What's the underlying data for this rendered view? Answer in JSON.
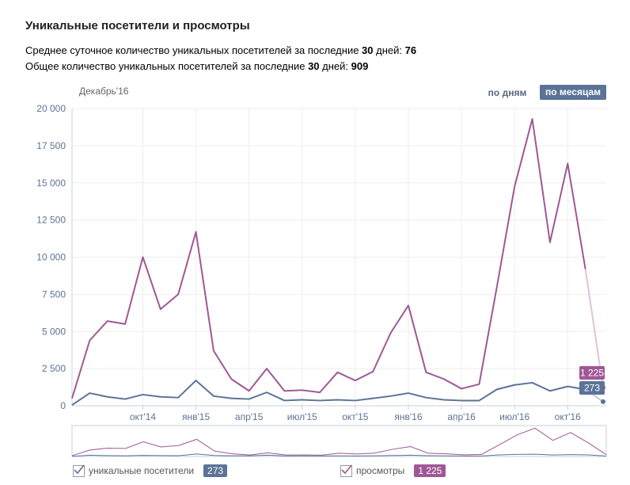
{
  "header": {
    "title": "Уникальные посетители и просмотры",
    "stat1_prefix": "Среднее суточное количество уникальных посетителей за последние ",
    "stat1_days": "30",
    "stat1_mid": " дней: ",
    "stat1_value": "76",
    "stat2_prefix": "Общее количество уникальных посетителей за последние ",
    "stat2_days": "30",
    "stat2_mid": " дней: ",
    "stat2_value": "909",
    "current_month": "Декабрь'16"
  },
  "toggle": {
    "by_days": "по дням",
    "by_months": "по месяцам",
    "active": "by_months"
  },
  "colors": {
    "visitors": "#5b7397",
    "views": "#a05795",
    "grid": "#eeeeee",
    "axis_text": "#5b7397"
  },
  "chart_data": {
    "type": "line",
    "y_ticks": [
      "20 000",
      "17 500",
      "15 000",
      "12 500",
      "10 000",
      "7 500",
      "5 000",
      "2 500",
      "0"
    ],
    "ylim": [
      0,
      20000
    ],
    "x_ticks": [
      "окт'14",
      "янв'15",
      "апр'15",
      "июл'15",
      "окт'15",
      "янв'16",
      "апр'16",
      "июл'16",
      "окт'16"
    ],
    "x": [
      "июн'14",
      "июл'14",
      "авг'14",
      "сен'14",
      "окт'14",
      "ноя'14",
      "дек'14",
      "янв'15",
      "фев'15",
      "мар'15",
      "апр'15",
      "май'15",
      "июн'15",
      "июл'15",
      "авг'15",
      "сен'15",
      "окт'15",
      "ноя'15",
      "дек'15",
      "янв'16",
      "фев'16",
      "мар'16",
      "апр'16",
      "май'16",
      "июн'16",
      "июл'16",
      "авг'16",
      "сен'16",
      "окт'16",
      "ноя'16",
      "дек'16"
    ],
    "series": [
      {
        "name": "уникальные посетители",
        "color": "#5b7397",
        "values": [
          50,
          850,
          600,
          450,
          750,
          600,
          550,
          1700,
          650,
          500,
          450,
          900,
          350,
          400,
          350,
          400,
          350,
          500,
          650,
          850,
          550,
          400,
          350,
          350,
          1100,
          1400,
          1550,
          1000,
          1300,
          1100,
          273
        ]
      },
      {
        "name": "просмотры",
        "color": "#a05795",
        "values": [
          500,
          4400,
          5700,
          5500,
          10000,
          6500,
          7500,
          11700,
          3700,
          1800,
          1000,
          2500,
          1000,
          1050,
          900,
          2250,
          1700,
          2300,
          4900,
          6750,
          2250,
          1800,
          1150,
          1450,
          8000,
          14750,
          19300,
          11000,
          16300,
          9200,
          1225
        ]
      }
    ],
    "current": {
      "visitors": "273",
      "views": "1 225"
    }
  },
  "legend": {
    "visitors_label": "уникальные посетители",
    "visitors_value": "273",
    "views_label": "просмотры",
    "views_value": "1 225"
  }
}
